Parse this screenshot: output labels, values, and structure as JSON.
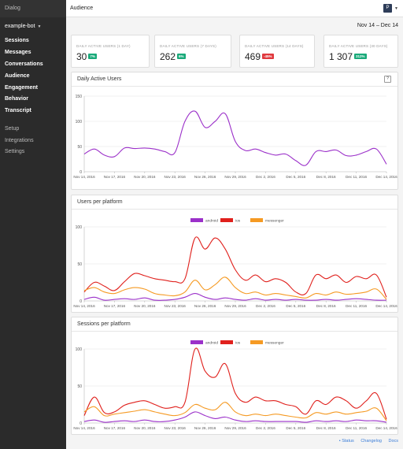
{
  "sidebar": {
    "brand": "Dialog",
    "bot": "example-bot",
    "primary": [
      "Sessions",
      "Messages",
      "Conversations",
      "Audience",
      "Engagement",
      "Behavior",
      "Transcript"
    ],
    "secondary": [
      "Setup",
      "Integrations",
      "Settings"
    ]
  },
  "header": {
    "title": "Audience",
    "avatar": "P"
  },
  "date_range": "Nov 14 – Dec 14",
  "stats": [
    {
      "label": "DAILY ACTIVE USERS (1 DAY)",
      "value": "30",
      "badge": "7%",
      "badge_color": "#1aaa7a"
    },
    {
      "label": "DAILY ACTIVE USERS (7 DAYS)",
      "value": "262",
      "badge": "6%",
      "badge_color": "#1aaa7a"
    },
    {
      "label": "DAILY ACTIVE USERS (14 DAYS)",
      "value": "469",
      "badge": "-45%",
      "badge_color": "#e0393e"
    },
    {
      "label": "DAILY ACTIVE USERS (30 DAYS)",
      "value": "1 307",
      "badge": "312%",
      "badge_color": "#1aaa7a"
    }
  ],
  "panels": {
    "dau_title": "Daily Active Users",
    "help": "?",
    "platform_title": "Users per platform",
    "sessions_title": "Sessions per platform"
  },
  "footer": {
    "status": "• Status",
    "changelog": "Changelog",
    "docs": "Docs"
  },
  "chart_data": [
    {
      "type": "line",
      "title": "Daily Active Users",
      "x_ticks": [
        "Nov 14, 2016",
        "Nov 17, 2016",
        "Nov 20, 2016",
        "Nov 23, 2016",
        "Nov 26, 2016",
        "Nov 29, 2016",
        "Dec 2, 2016",
        "Dec 5, 2016",
        "Dec 8, 2016",
        "Dec 11, 2016",
        "Dec 14, 2016"
      ],
      "y_ticks": [
        0,
        50,
        100,
        150
      ],
      "ylim": [
        0,
        150
      ],
      "series": [
        {
          "color": "#9b30c9",
          "values": [
            35,
            45,
            33,
            30,
            47,
            46,
            47,
            45,
            40,
            38,
            100,
            120,
            88,
            100,
            115,
            60,
            42,
            45,
            38,
            33,
            35,
            22,
            13,
            40,
            40,
            43,
            32,
            33,
            40,
            45,
            15
          ]
        }
      ]
    },
    {
      "type": "line",
      "title": "Users per platform",
      "legend": [
        "android",
        "ios",
        "messenger"
      ],
      "legend_position": "top-center",
      "x_ticks": [
        "Nov 14, 2016",
        "Nov 17, 2016",
        "Nov 20, 2016",
        "Nov 23, 2016",
        "Nov 26, 2016",
        "Nov 29, 2016",
        "Dec 2, 2016",
        "Dec 5, 2016",
        "Dec 8, 2016",
        "Dec 11, 2016",
        "Dec 14, 2016"
      ],
      "y_ticks": [
        0,
        50,
        100
      ],
      "ylim": [
        0,
        100
      ],
      "series": [
        {
          "name": "android",
          "color": "#9b30c9",
          "values": [
            2,
            5,
            1,
            2,
            3,
            2,
            4,
            1,
            1,
            2,
            5,
            10,
            5,
            2,
            4,
            2,
            1,
            3,
            1,
            2,
            1,
            2,
            1,
            1,
            2,
            1,
            2,
            3,
            2,
            1,
            1
          ]
        },
        {
          "name": "ios",
          "color": "#e0201c",
          "values": [
            12,
            25,
            20,
            14,
            26,
            37,
            34,
            30,
            28,
            26,
            30,
            85,
            70,
            85,
            70,
            42,
            28,
            35,
            26,
            30,
            25,
            12,
            10,
            35,
            30,
            35,
            25,
            33,
            30,
            35,
            5
          ]
        },
        {
          "name": "messenger",
          "color": "#f59a23",
          "values": [
            14,
            18,
            12,
            10,
            15,
            18,
            16,
            10,
            8,
            7,
            12,
            28,
            15,
            22,
            32,
            18,
            10,
            12,
            8,
            10,
            8,
            6,
            4,
            10,
            8,
            12,
            9,
            10,
            12,
            16,
            2
          ]
        }
      ]
    },
    {
      "type": "line",
      "title": "Sessions per platform",
      "legend": [
        "android",
        "ios",
        "messenger"
      ],
      "legend_position": "top-center",
      "x_ticks": [
        "Nov 14, 2016",
        "Nov 17, 2016",
        "Nov 20, 2016",
        "Nov 23, 2016",
        "Nov 26, 2016",
        "Nov 29, 2016",
        "Dec 2, 2016",
        "Dec 5, 2016",
        "Dec 8, 2016",
        "Dec 11, 2016",
        "Dec 14, 2016"
      ],
      "y_ticks": [
        0,
        50,
        100
      ],
      "ylim": [
        0,
        100
      ],
      "series": [
        {
          "name": "android",
          "color": "#9b30c9",
          "values": [
            2,
            4,
            1,
            2,
            3,
            2,
            4,
            2,
            2,
            4,
            8,
            15,
            10,
            6,
            8,
            4,
            2,
            3,
            2,
            2,
            2,
            2,
            1,
            3,
            2,
            3,
            2,
            4,
            3,
            3,
            1
          ]
        },
        {
          "name": "ios",
          "color": "#e0201c",
          "values": [
            10,
            35,
            14,
            15,
            24,
            28,
            30,
            25,
            20,
            22,
            28,
            100,
            70,
            62,
            80,
            40,
            28,
            35,
            30,
            30,
            25,
            22,
            12,
            30,
            25,
            35,
            30,
            20,
            30,
            40,
            5
          ]
        },
        {
          "name": "messenger",
          "color": "#f59a23",
          "values": [
            15,
            22,
            10,
            12,
            14,
            16,
            18,
            15,
            12,
            10,
            14,
            25,
            20,
            18,
            28,
            15,
            10,
            12,
            10,
            12,
            10,
            8,
            7,
            14,
            12,
            15,
            12,
            14,
            16,
            20,
            3
          ]
        }
      ]
    }
  ]
}
